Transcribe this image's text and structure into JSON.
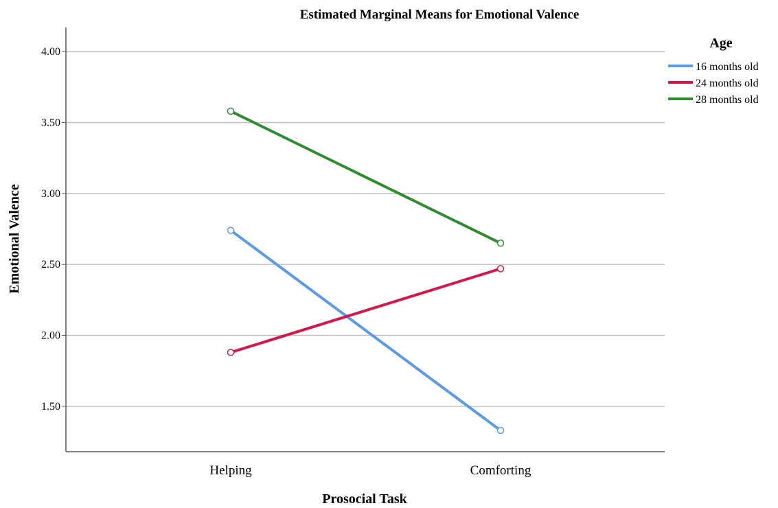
{
  "chart_data": {
    "type": "line",
    "title": "Estimated Marginal Means for Emotional Valence",
    "xlabel": "Prosocial Task",
    "ylabel": "Emotional Valence",
    "categories": [
      "Helping",
      "Comforting"
    ],
    "ylim": [
      1.18,
      4.17
    ],
    "yticks": [
      1.5,
      2.0,
      2.5,
      3.0,
      3.5,
      4.0
    ],
    "ytick_labels": [
      "1.50",
      "2.00",
      "2.50",
      "3.00",
      "3.50",
      "4.00"
    ],
    "grid": "horizontal",
    "legend": {
      "title": "Age",
      "position": "top-right"
    },
    "series": [
      {
        "name": "16 months old",
        "values": [
          2.74,
          1.33
        ],
        "color": "#5b9be6"
      },
      {
        "name": "24 months old",
        "values": [
          1.88,
          2.47
        ],
        "color": "#d6174a"
      },
      {
        "name": "28 months old",
        "values": [
          3.58,
          2.65
        ],
        "color": "#2e8b2e"
      }
    ]
  }
}
